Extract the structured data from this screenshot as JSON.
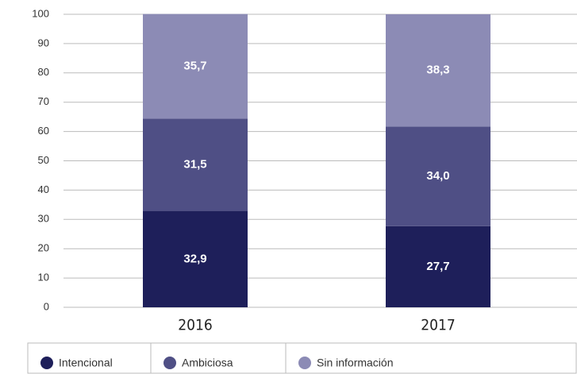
{
  "chart_data": {
    "type": "stacked_bar",
    "categories": [
      "2016",
      "2017"
    ],
    "series": [
      {
        "name": "Intencional",
        "color": "#1e1f5a",
        "values": [
          32.9,
          27.7
        ],
        "value_labels": [
          "32,9",
          "27,7"
        ]
      },
      {
        "name": "Ambiciosa",
        "color": "#4f4f85",
        "values": [
          31.5,
          34.0
        ],
        "value_labels": [
          "31,5",
          "34,0"
        ]
      },
      {
        "name": "Sin información",
        "color": "#8c8bb5",
        "values": [
          35.7,
          38.3
        ],
        "value_labels": [
          "35,7",
          "38,3"
        ]
      }
    ],
    "ylim": [
      0,
      100
    ],
    "yticks": [
      0,
      10,
      20,
      30,
      40,
      50,
      60,
      70,
      80,
      90,
      100
    ],
    "grid": true,
    "legend": "bottom"
  }
}
